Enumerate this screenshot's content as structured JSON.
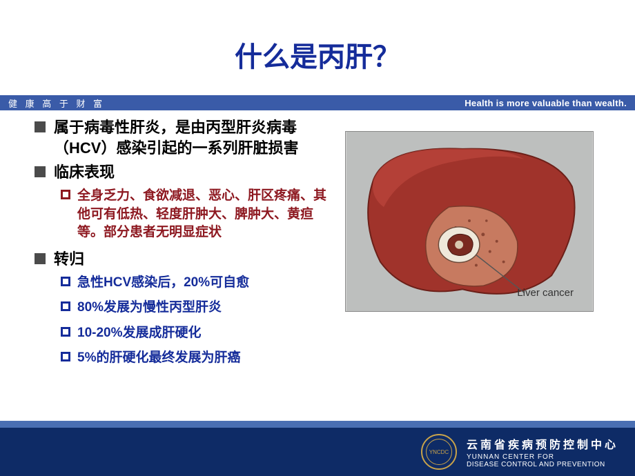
{
  "colors": {
    "title": "#152c9a",
    "banner_bg": "#3a5ba8",
    "banner_text": "#ffffff",
    "bullet_l1_marker": "#4b4b4b",
    "bullet_l1_text": "#000000",
    "sub_red": "#8d1820",
    "sub_blue": "#152c9a",
    "footer_stripe": "#4a6fb3",
    "footer_bg": "#0e2b66",
    "liver_bg": "#bdbfbe",
    "liver_body": "#a0332b",
    "liver_cut": "#c77a60",
    "logo_gold": "#c9a34a"
  },
  "title": "什么是丙肝？",
  "banner": {
    "left": "健 康 高 于 财 富",
    "right": "Health is more valuable than wealth."
  },
  "bullets": [
    {
      "level": 1,
      "color_key": "bullet_l1_text",
      "marker_color_key": "bullet_l1_marker",
      "text": "属于病毒性肝炎，是由丙型肝炎病毒（HCV）感染引起的一系列肝脏损害"
    },
    {
      "level": 1,
      "color_key": "bullet_l1_text",
      "marker_color_key": "bullet_l1_marker",
      "text": "临床表现"
    },
    {
      "level": 2,
      "color_key": "sub_red",
      "marker_color_key": "sub_red",
      "text": "全身乏力、食欲减退、恶心、肝区疼痛、其他可有低热、轻度肝肿大、脾肿大、黄疸等。部分患者无明显症状"
    },
    {
      "level": 1,
      "color_key": "bullet_l1_text",
      "marker_color_key": "bullet_l1_marker",
      "text": "转归"
    },
    {
      "level": 2,
      "color_key": "sub_blue",
      "marker_color_key": "sub_blue",
      "text": "急性HCV感染后，20%可自愈"
    },
    {
      "level": 2,
      "color_key": "sub_blue",
      "marker_color_key": "sub_blue",
      "text": "80%发展为慢性丙型肝炎"
    },
    {
      "level": 2,
      "color_key": "sub_blue",
      "marker_color_key": "sub_blue",
      "text": "10-20%发展成肝硬化"
    },
    {
      "level": 2,
      "color_key": "sub_blue",
      "marker_color_key": "sub_blue",
      "text": "5%的肝硬化最终发展为肝癌"
    }
  ],
  "image": {
    "label": "Liver cancer"
  },
  "footer": {
    "org_cn": "云南省疾病预防控制中心",
    "org_en1": "YUNNAN CENTER FOR",
    "org_en2": "DISEASE CONTROL AND PREVENTION",
    "logo_text": "YNCDC"
  }
}
